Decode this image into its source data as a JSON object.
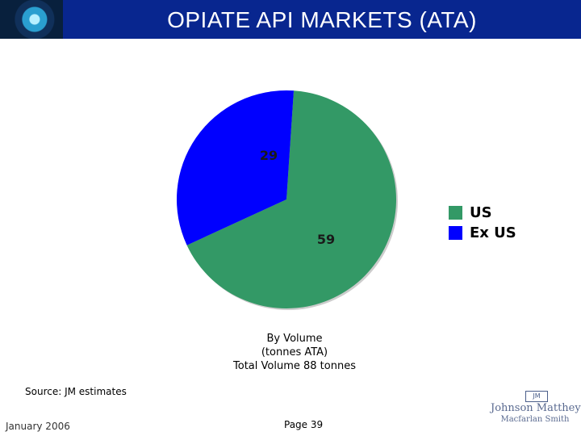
{
  "header": {
    "title": "OPIATE API MARKETS (ATA)"
  },
  "chart_data": {
    "type": "pie",
    "categories": [
      "US",
      "Ex US"
    ],
    "values": [
      59,
      29
    ],
    "colors": [
      "#339966",
      "#0000ff"
    ],
    "data_labels": [
      "59",
      "29"
    ],
    "legend": {
      "placement": "right",
      "entries": [
        "US",
        "Ex US"
      ]
    }
  },
  "caption": {
    "line1": "By Volume",
    "line2": "(tonnes ATA)",
    "line3": "Total Volume 88 tonnes"
  },
  "footer": {
    "source": "Source: JM estimates",
    "date": "January 2006",
    "page": "Page 39"
  },
  "logo": {
    "mark": "JM",
    "line1": "Johnson Matthey",
    "line2": "Macfarlan Smith"
  }
}
